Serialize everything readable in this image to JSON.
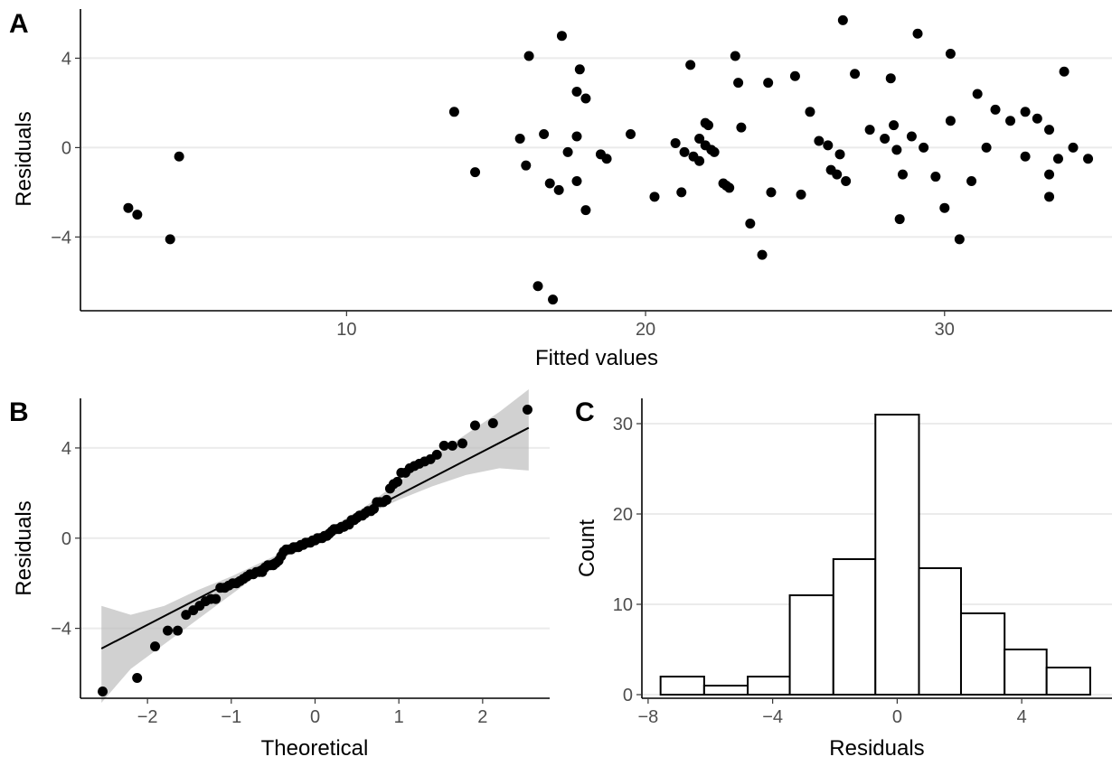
{
  "chart_data": [
    {
      "panel": "A",
      "type": "scatter",
      "xlabel": "Fitted values",
      "ylabel": "Residuals",
      "xlim": [
        1.1,
        35.6
      ],
      "ylim": [
        -7.3,
        6.2
      ],
      "xticks": [
        10,
        20,
        30
      ],
      "yticks": [
        -4,
        0,
        4
      ],
      "grid": "horizontal",
      "points": [
        [
          2.7,
          -2.7
        ],
        [
          3.0,
          -3.0
        ],
        [
          4.1,
          -4.1
        ],
        [
          4.4,
          -0.4
        ],
        [
          13.6,
          1.6
        ],
        [
          14.3,
          -1.1
        ],
        [
          15.8,
          0.4
        ],
        [
          16.0,
          -0.8
        ],
        [
          16.1,
          4.1
        ],
        [
          16.4,
          -6.2
        ],
        [
          16.6,
          0.6
        ],
        [
          16.8,
          -1.6
        ],
        [
          16.9,
          -6.8
        ],
        [
          17.1,
          -1.9
        ],
        [
          17.2,
          5.0
        ],
        [
          17.4,
          -0.2
        ],
        [
          17.7,
          0.5
        ],
        [
          17.7,
          2.5
        ],
        [
          17.7,
          -1.5
        ],
        [
          17.8,
          3.5
        ],
        [
          18.0,
          2.2
        ],
        [
          18.0,
          -2.8
        ],
        [
          18.5,
          -0.3
        ],
        [
          18.7,
          -0.5
        ],
        [
          19.5,
          0.6
        ],
        [
          20.3,
          -2.2
        ],
        [
          21.0,
          0.2
        ],
        [
          21.2,
          -2.0
        ],
        [
          21.3,
          -0.2
        ],
        [
          21.5,
          3.7
        ],
        [
          21.6,
          -0.4
        ],
        [
          21.8,
          -0.6
        ],
        [
          21.8,
          0.4
        ],
        [
          22.0,
          1.1
        ],
        [
          22.0,
          0.1
        ],
        [
          22.1,
          1.0
        ],
        [
          22.2,
          -0.1
        ],
        [
          22.3,
          -0.2
        ],
        [
          22.6,
          -1.6
        ],
        [
          22.7,
          -1.7
        ],
        [
          22.8,
          -1.8
        ],
        [
          23.0,
          4.1
        ],
        [
          23.1,
          2.9
        ],
        [
          23.2,
          0.9
        ],
        [
          23.5,
          -3.4
        ],
        [
          23.9,
          -4.8
        ],
        [
          24.1,
          2.9
        ],
        [
          24.2,
          -2.0
        ],
        [
          25.0,
          3.2
        ],
        [
          25.2,
          -2.1
        ],
        [
          25.5,
          1.6
        ],
        [
          25.8,
          0.3
        ],
        [
          26.1,
          0.1
        ],
        [
          26.2,
          -1.0
        ],
        [
          26.4,
          -1.2
        ],
        [
          26.5,
          -0.3
        ],
        [
          26.6,
          5.7
        ],
        [
          26.7,
          -1.5
        ],
        [
          27.0,
          3.3
        ],
        [
          27.5,
          0.8
        ],
        [
          28.0,
          0.4
        ],
        [
          28.2,
          3.1
        ],
        [
          28.3,
          1.0
        ],
        [
          28.4,
          -0.1
        ],
        [
          28.5,
          -3.2
        ],
        [
          28.6,
          -1.2
        ],
        [
          28.9,
          0.5
        ],
        [
          29.1,
          5.1
        ],
        [
          29.3,
          0.0
        ],
        [
          29.7,
          -1.3
        ],
        [
          30.0,
          -2.7
        ],
        [
          30.2,
          4.2
        ],
        [
          30.2,
          1.2
        ],
        [
          30.5,
          -4.1
        ],
        [
          30.9,
          -1.5
        ],
        [
          31.1,
          2.4
        ],
        [
          31.4,
          0.0
        ],
        [
          31.7,
          1.7
        ],
        [
          32.2,
          1.2
        ],
        [
          32.7,
          1.6
        ],
        [
          32.7,
          -0.4
        ],
        [
          33.1,
          1.3
        ],
        [
          33.5,
          0.8
        ],
        [
          33.5,
          -1.2
        ],
        [
          33.5,
          -2.2
        ],
        [
          33.8,
          -0.5
        ],
        [
          34.0,
          3.4
        ],
        [
          34.3,
          0.0
        ],
        [
          34.8,
          -0.5
        ]
      ]
    },
    {
      "panel": "B",
      "type": "scatter",
      "xlabel": "Theoretical",
      "ylabel": "Residuals",
      "xlim": [
        -2.8,
        2.8
      ],
      "ylim": [
        -7.1,
        6.2
      ],
      "xticks": [
        -2,
        -1,
        0,
        1,
        2
      ],
      "yticks": [
        -4,
        0,
        4
      ],
      "grid": "horizontal",
      "reference_line": {
        "slope": 1.92,
        "intercept": 0.0
      },
      "confidence_band": {
        "x": [
          -2.55,
          -2.2,
          -1.8,
          -1.4,
          -1.0,
          -0.6,
          -0.2,
          0.2,
          0.6,
          1.0,
          1.4,
          1.8,
          2.2,
          2.55
        ],
        "lower": [
          -7.3,
          -5.8,
          -4.7,
          -3.6,
          -2.5,
          -1.4,
          -0.5,
          0.3,
          1.0,
          1.7,
          2.3,
          2.8,
          3.1,
          3.0
        ],
        "upper": [
          -3.0,
          -3.4,
          -3.0,
          -2.3,
          -1.7,
          -1.0,
          -0.3,
          0.5,
          1.4,
          2.5,
          3.6,
          4.6,
          5.6,
          6.6
        ]
      }
    },
    {
      "panel": "C",
      "type": "bar",
      "xlabel": "Residuals",
      "ylabel": "Count",
      "xlim": [
        -8.2,
        6.9
      ],
      "ylim": [
        -0.4,
        32.8
      ],
      "xticks": [
        -8,
        -4,
        0,
        4
      ],
      "yticks": [
        0,
        10,
        20,
        30
      ],
      "grid": "horizontal",
      "bins": [
        {
          "start": -7.6,
          "end": -6.2,
          "count": 2
        },
        {
          "start": -6.2,
          "end": -4.8,
          "count": 1
        },
        {
          "start": -4.8,
          "end": -3.45,
          "count": 2
        },
        {
          "start": -3.45,
          "end": -2.05,
          "count": 11
        },
        {
          "start": -2.05,
          "end": -0.7,
          "count": 15
        },
        {
          "start": -0.7,
          "end": 0.7,
          "count": 31
        },
        {
          "start": 0.7,
          "end": 2.05,
          "count": 14
        },
        {
          "start": 2.05,
          "end": 3.45,
          "count": 9
        },
        {
          "start": 3.45,
          "end": 4.8,
          "count": 5
        },
        {
          "start": 4.8,
          "end": 6.2,
          "count": 3
        }
      ]
    }
  ]
}
